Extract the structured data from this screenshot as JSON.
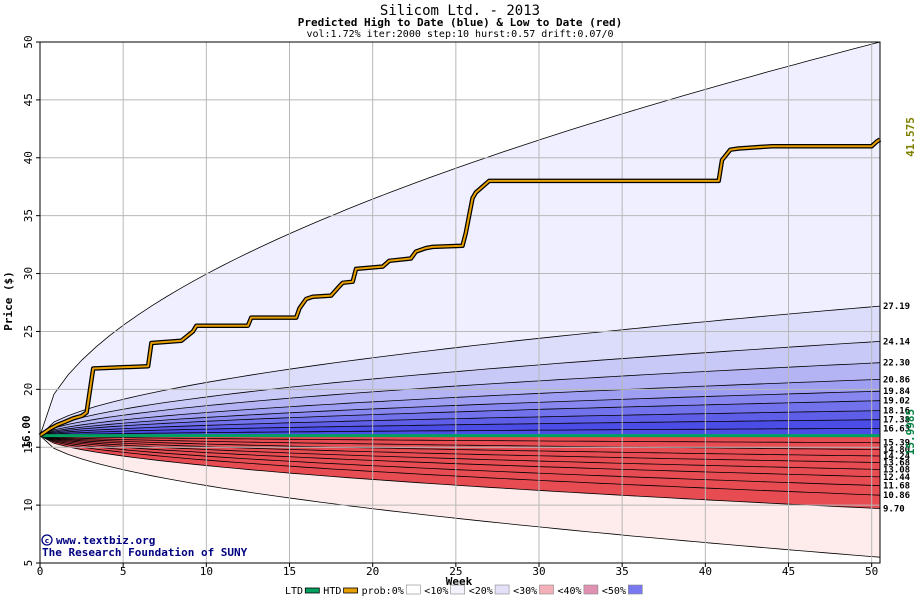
{
  "chart_data": {
    "type": "area",
    "title": "Silicom Ltd. - 2013",
    "subtitle": "Predicted High to Date (blue) &  Low to Date (red)",
    "params": "vol:1.72% iter:2000 step:10 hurst:0.57 drift:0.07/0",
    "xlabel": "Week",
    "ylabel": "Price ($)",
    "xlim": [
      0,
      50.5
    ],
    "ylim": [
      5,
      50
    ],
    "xticks": [
      0,
      5,
      10,
      15,
      20,
      25,
      30,
      35,
      40,
      45,
      50
    ],
    "yticks": [
      5,
      10,
      15,
      20,
      25,
      30,
      35,
      40,
      45,
      50
    ],
    "grid": true,
    "start_price": 16.0,
    "start_label": "16.00",
    "current_high_label": "41.575",
    "current_low_label": "15.9985",
    "high_band_end_labels": [
      "27.19",
      "24.14",
      "22.30",
      "20.86",
      "19.84",
      "19.02",
      "18.16",
      "17.38",
      "16.63"
    ],
    "high_band_end_values": [
      27.19,
      24.14,
      22.3,
      20.86,
      19.84,
      19.02,
      18.16,
      17.38,
      16.63
    ],
    "low_band_end_labels": [
      "15.39",
      "14.80",
      "14.24",
      "13.68",
      "13.08",
      "12.44",
      "11.68",
      "10.86",
      "9.70"
    ],
    "low_band_end_values": [
      15.39,
      14.8,
      14.24,
      13.68,
      13.08,
      12.44,
      11.68,
      10.86,
      9.7
    ],
    "envelope_high_end": 50.0,
    "envelope_low_end": 5.5,
    "htd_series": {
      "name": "HTD",
      "x": [
        0,
        0.6,
        1.0,
        1.5,
        2.0,
        2.5,
        2.8,
        3.2,
        6.5,
        6.7,
        8.5,
        9.2,
        9.4,
        12.5,
        12.7,
        15.4,
        15.6,
        16.0,
        16.4,
        17.5,
        18.0,
        18.2,
        18.8,
        19.0,
        20.6,
        21.0,
        22.3,
        22.6,
        23.2,
        23.6,
        25.4,
        25.6,
        26.0,
        26.2,
        26.6,
        27.0,
        40.8,
        41.0,
        41.5,
        42.0,
        44.0,
        50.0,
        50.3,
        50.5
      ],
      "y": [
        16.0,
        16.6,
        16.9,
        17.2,
        17.5,
        17.7,
        18.0,
        21.8,
        22.0,
        24.0,
        24.2,
        25.0,
        25.5,
        25.5,
        26.2,
        26.2,
        27.0,
        27.8,
        28.0,
        28.1,
        28.9,
        29.2,
        29.3,
        30.4,
        30.6,
        31.1,
        31.3,
        31.9,
        32.2,
        32.3,
        32.4,
        33.5,
        36.5,
        37.0,
        37.5,
        38.0,
        38.0,
        39.8,
        40.7,
        40.8,
        41.0,
        41.0,
        41.4,
        41.575
      ]
    },
    "ltd_series": {
      "name": "LTD",
      "x": [
        0,
        50.5
      ],
      "y": [
        16.0,
        15.9985
      ]
    },
    "legend": {
      "items": [
        {
          "label": "LTD",
          "color": "#00a060"
        },
        {
          "label": "HTD",
          "color": "#e8a000"
        },
        {
          "label": "prob:0%",
          "color": "#ffffff"
        },
        {
          "label": "<10%",
          "color": "#f4f2fc"
        },
        {
          "label": "<20%",
          "color": "#e4e0f8"
        },
        {
          "label": "<30%",
          "color": "#f4b0b8"
        },
        {
          "label": "<40%",
          "color": "#e090b0"
        },
        {
          "label": "<50%",
          "color": "#7878f0"
        }
      ]
    }
  },
  "credits": {
    "line1": "www.textbiz.org",
    "line2": "The Research Foundation of SUNY"
  },
  "colors": {
    "high_shades": [
      "#efefff",
      "#dcdcfb",
      "#c9c9f8",
      "#b4b4f5",
      "#9e9ef2",
      "#8787ef",
      "#7272ec",
      "#5e5ee9",
      "#4c4ce6"
    ],
    "low_shades": [
      "#fdeceb",
      "#fbd8d8",
      "#f9c4c5",
      "#f6b0b2",
      "#f39c9f",
      "#f0888c",
      "#ed7479",
      "#ea6066",
      "#e74c53"
    ],
    "htd": "#e8a000",
    "ltd": "#00a060",
    "grid": "#b8b8b8",
    "ylabel_color": "#000000",
    "high_value_color": "#808000",
    "low_value_color": "#008040"
  }
}
